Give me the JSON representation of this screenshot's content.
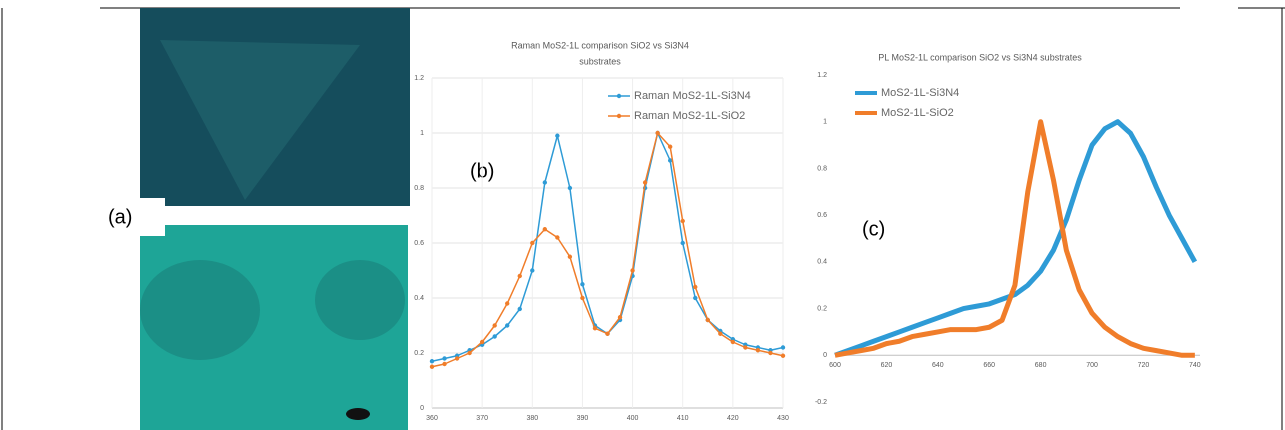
{
  "image_label": "(a)",
  "chart_data": [
    {
      "type": "line",
      "panel_label": "(b)",
      "title": [
        "Raman MoS2-1L comparison SiO2 vs Si3N4",
        "substrates"
      ],
      "x": [
        360,
        362.5,
        365,
        367.5,
        370,
        372.5,
        375,
        377.5,
        380,
        382.5,
        385,
        387.5,
        390,
        392.5,
        395,
        397.5,
        400,
        402.5,
        405,
        407.5,
        410,
        412.5,
        415,
        417.5,
        420,
        422.5,
        425,
        427.5,
        430
      ],
      "series": [
        {
          "name": "Raman MoS2-1L-Si3N4",
          "color": "#2e9bd6",
          "values": [
            0.17,
            0.18,
            0.19,
            0.21,
            0.23,
            0.26,
            0.3,
            0.36,
            0.5,
            0.82,
            0.99,
            0.8,
            0.45,
            0.3,
            0.27,
            0.32,
            0.48,
            0.8,
            1.0,
            0.9,
            0.6,
            0.4,
            0.32,
            0.28,
            0.25,
            0.23,
            0.22,
            0.21,
            0.22
          ]
        },
        {
          "name": "Raman MoS2-1L-SiO2",
          "color": "#f07d2a",
          "values": [
            0.15,
            0.16,
            0.18,
            0.2,
            0.24,
            0.3,
            0.38,
            0.48,
            0.6,
            0.65,
            0.62,
            0.55,
            0.4,
            0.29,
            0.27,
            0.33,
            0.5,
            0.82,
            1.0,
            0.95,
            0.68,
            0.44,
            0.32,
            0.27,
            0.24,
            0.22,
            0.21,
            0.2,
            0.19
          ]
        }
      ],
      "xlim": [
        360,
        430
      ],
      "xticks": [
        360,
        370,
        380,
        390,
        400,
        410,
        420,
        430
      ],
      "ylim": [
        0,
        1.2
      ],
      "yticks": [
        0,
        0.2,
        0.4,
        0.6,
        0.8,
        1,
        1.2
      ],
      "grid": true,
      "markers": true,
      "legend": "upper right"
    },
    {
      "type": "line",
      "panel_label": "(c)",
      "title": [
        "PL MoS2-1L comparison SiO2 vs Si3N4 substrates"
      ],
      "x": [
        600,
        605,
        610,
        615,
        620,
        625,
        630,
        635,
        640,
        645,
        650,
        655,
        660,
        665,
        670,
        675,
        680,
        685,
        690,
        695,
        700,
        705,
        710,
        715,
        720,
        725,
        730,
        735,
        740
      ],
      "series": [
        {
          "name": "MoS2-1L-Si3N4",
          "color": "#2e9bd6",
          "values": [
            0.0,
            0.02,
            0.04,
            0.06,
            0.08,
            0.1,
            0.12,
            0.14,
            0.16,
            0.18,
            0.2,
            0.21,
            0.22,
            0.24,
            0.26,
            0.3,
            0.36,
            0.45,
            0.58,
            0.75,
            0.9,
            0.97,
            1.0,
            0.95,
            0.85,
            0.72,
            0.6,
            0.5,
            0.4
          ]
        },
        {
          "name": "MoS2-1L-SiO2",
          "color": "#f07d2a",
          "values": [
            0.0,
            0.01,
            0.02,
            0.03,
            0.05,
            0.06,
            0.08,
            0.09,
            0.1,
            0.11,
            0.11,
            0.11,
            0.12,
            0.15,
            0.3,
            0.7,
            1.0,
            0.75,
            0.45,
            0.28,
            0.18,
            0.12,
            0.08,
            0.05,
            0.03,
            0.02,
            0.01,
            0.0,
            0.0
          ]
        }
      ],
      "xlim": [
        600,
        742
      ],
      "xticks": [
        600,
        620,
        640,
        660,
        680,
        700,
        720,
        740
      ],
      "ylim": [
        -0.2,
        1.2
      ],
      "yticks": [
        -0.2,
        0,
        0.2,
        0.4,
        0.6,
        0.8,
        1,
        1.2
      ],
      "grid": false,
      "markers": false,
      "legend": "upper left"
    }
  ]
}
